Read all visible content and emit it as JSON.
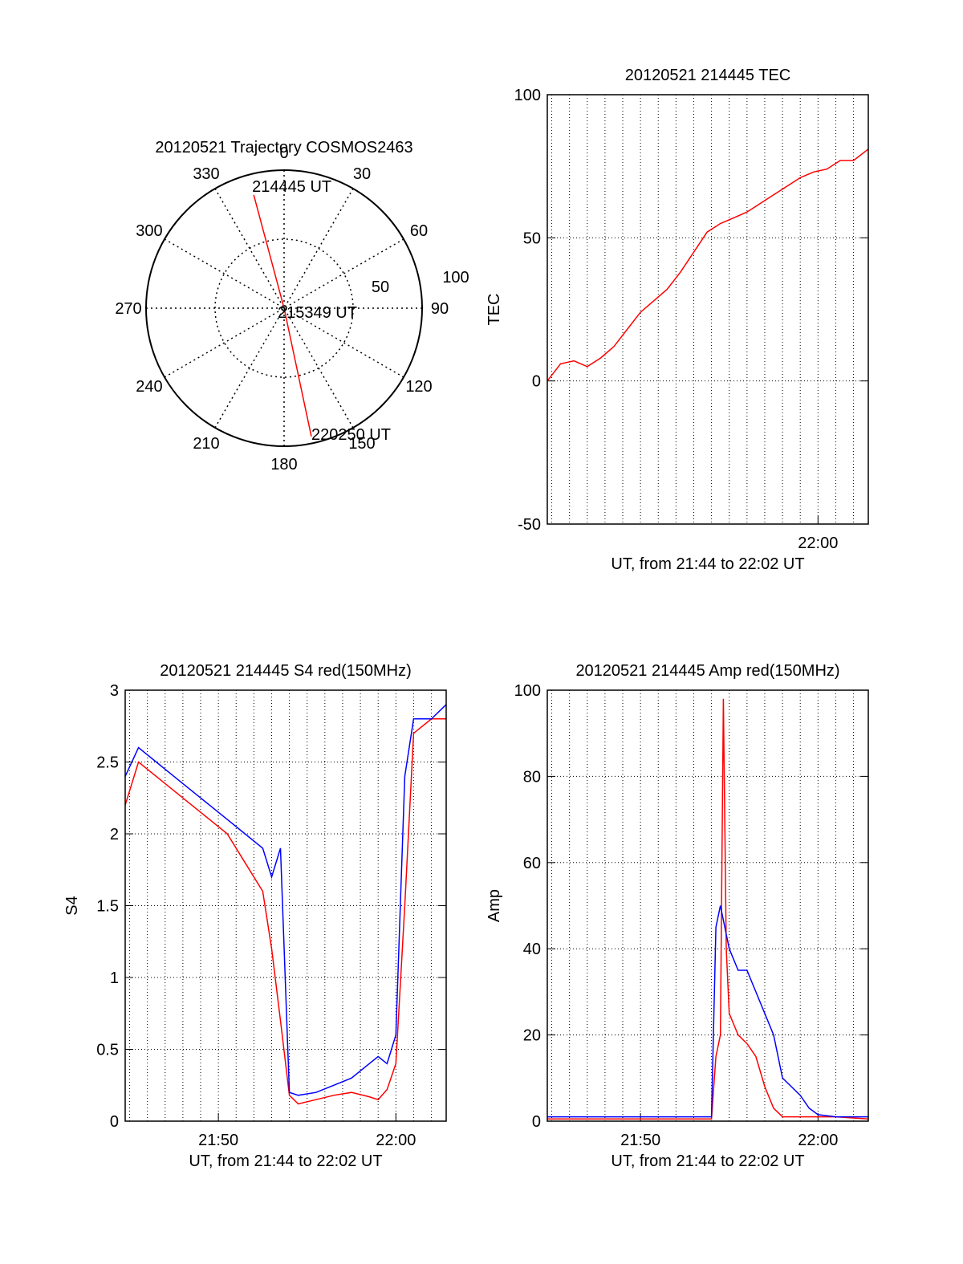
{
  "chart_data": [
    {
      "id": "trajectory",
      "type": "polar",
      "title": "20120521 Trajectory COSMOS2463",
      "grid": true,
      "azimuth_ticks": [
        "0",
        "30",
        "60",
        "90",
        "120",
        "150",
        "180",
        "210",
        "240",
        "270",
        "300",
        "330"
      ],
      "radial_ticks": [
        "50",
        "100"
      ],
      "r_max": 100,
      "track": [
        {
          "label": "214445 UT",
          "azimuth_deg": 345,
          "radius": 85
        },
        {
          "label": "215349 UT",
          "azimuth_deg": 0,
          "radius": 0
        },
        {
          "label": "220250 UT",
          "azimuth_deg": 168,
          "radius": 95
        }
      ],
      "line_color": "#ff0000"
    },
    {
      "id": "tec",
      "type": "line",
      "title": "20120521 214445 TEC",
      "xlabel": "UT, from 21:44 to 22:02 UT",
      "ylabel": "TEC",
      "xlim": [
        "21:44:45",
        "22:02:50"
      ],
      "x_tick_labels": [
        "22:00"
      ],
      "ylim": [
        -50,
        100
      ],
      "y_ticks": [
        "-50",
        "0",
        "50",
        "100"
      ],
      "grid": true,
      "series": [
        {
          "color": "#ff0000",
          "x": [
            "21:44:45",
            "21:45:30",
            "21:46:15",
            "21:47:00",
            "21:47:45",
            "21:48:30",
            "21:49:15",
            "21:50:00",
            "21:50:45",
            "21:51:30",
            "21:52:15",
            "21:53:00",
            "21:53:45",
            "21:54:30",
            "21:55:15",
            "21:56:00",
            "21:56:45",
            "21:57:30",
            "21:58:15",
            "21:59:00",
            "21:59:45",
            "22:00:30",
            "22:01:15",
            "22:02:00",
            "22:02:50"
          ],
          "values": [
            0,
            6,
            7,
            5,
            8,
            12,
            18,
            24,
            28,
            32,
            38,
            45,
            52,
            55,
            57,
            59,
            62,
            65,
            68,
            71,
            73,
            74,
            77,
            77,
            81
          ]
        }
      ]
    },
    {
      "id": "s4",
      "type": "line",
      "title": "20120521 214445 S4 red(150MHz)",
      "xlabel": "UT, from 21:44 to 22:02 UT",
      "ylabel": "S4",
      "xlim": [
        "21:44:45",
        "22:02:50"
      ],
      "x_tick_labels": [
        "21:50",
        "22:00"
      ],
      "ylim": [
        0,
        3
      ],
      "y_ticks": [
        "0",
        "0.5",
        "1",
        "1.5",
        "2",
        "2.5",
        "3"
      ],
      "grid": true,
      "series": [
        {
          "color": "#ff0000",
          "x": [
            "21:44:45",
            "21:45:30",
            "21:46:30",
            "21:47:30",
            "21:48:30",
            "21:49:30",
            "21:50:30",
            "21:51:30",
            "21:52:30",
            "21:53:00",
            "21:53:30",
            "21:54:00",
            "21:54:30",
            "21:55:30",
            "21:56:30",
            "21:57:30",
            "21:58:30",
            "21:59:00",
            "21:59:30",
            "22:00:00",
            "22:00:30",
            "22:01:00",
            "22:02:00",
            "22:02:50"
          ],
          "values": [
            2.2,
            2.5,
            2.4,
            2.3,
            2.2,
            2.1,
            2.0,
            1.8,
            1.6,
            1.2,
            0.7,
            0.18,
            0.12,
            0.15,
            0.18,
            0.2,
            0.17,
            0.15,
            0.22,
            0.4,
            1.5,
            2.7,
            2.8,
            2.8
          ]
        },
        {
          "color": "#0000ff",
          "x": [
            "21:44:45",
            "21:45:30",
            "21:46:30",
            "21:47:30",
            "21:48:30",
            "21:49:30",
            "21:50:30",
            "21:51:30",
            "21:52:30",
            "21:53:00",
            "21:53:30",
            "21:54:00",
            "21:54:30",
            "21:55:30",
            "21:56:30",
            "21:57:30",
            "21:58:30",
            "21:59:00",
            "21:59:30",
            "22:00:00",
            "22:00:30",
            "22:01:00",
            "22:02:00",
            "22:02:50"
          ],
          "values": [
            2.4,
            2.6,
            2.5,
            2.4,
            2.3,
            2.2,
            2.1,
            2.0,
            1.9,
            1.7,
            1.9,
            0.2,
            0.18,
            0.2,
            0.25,
            0.3,
            0.4,
            0.45,
            0.4,
            0.6,
            2.4,
            2.8,
            2.8,
            2.9
          ]
        }
      ]
    },
    {
      "id": "amp",
      "type": "line",
      "title": "20120521 214445 Amp red(150MHz)",
      "xlabel": "UT, from 21:44 to 22:02 UT",
      "ylabel": "Amp",
      "xlim": [
        "21:44:45",
        "22:02:50"
      ],
      "x_tick_labels": [
        "21:50",
        "22:00"
      ],
      "ylim": [
        0,
        100
      ],
      "y_ticks": [
        "0",
        "20",
        "40",
        "60",
        "80",
        "100"
      ],
      "grid": true,
      "series": [
        {
          "color": "#ff0000",
          "x": [
            "21:44:45",
            "21:49:00",
            "21:53:00",
            "21:54:00",
            "21:54:15",
            "21:54:30",
            "21:54:40",
            "21:54:50",
            "21:55:00",
            "21:55:30",
            "21:56:00",
            "21:56:30",
            "21:57:00",
            "21:57:30",
            "21:58:00",
            "21:59:00",
            "22:00:00",
            "22:01:00",
            "22:02:50"
          ],
          "values": [
            0.5,
            0.5,
            0.5,
            0.5,
            15,
            20,
            98,
            40,
            25,
            20,
            18,
            15,
            8,
            3,
            1,
            1,
            1,
            1,
            0.5
          ]
        },
        {
          "color": "#0000ff",
          "x": [
            "21:44:45",
            "21:49:00",
            "21:53:00",
            "21:54:00",
            "21:54:15",
            "21:54:30",
            "21:55:00",
            "21:55:30",
            "21:56:00",
            "21:56:30",
            "21:57:00",
            "21:57:30",
            "21:58:00",
            "21:58:30",
            "21:59:00",
            "21:59:30",
            "22:00:00",
            "22:01:00",
            "22:02:50"
          ],
          "values": [
            1,
            1,
            1,
            1,
            45,
            50,
            40,
            35,
            35,
            30,
            25,
            20,
            10,
            8,
            6,
            3,
            1.5,
            1,
            1
          ]
        }
      ]
    }
  ]
}
